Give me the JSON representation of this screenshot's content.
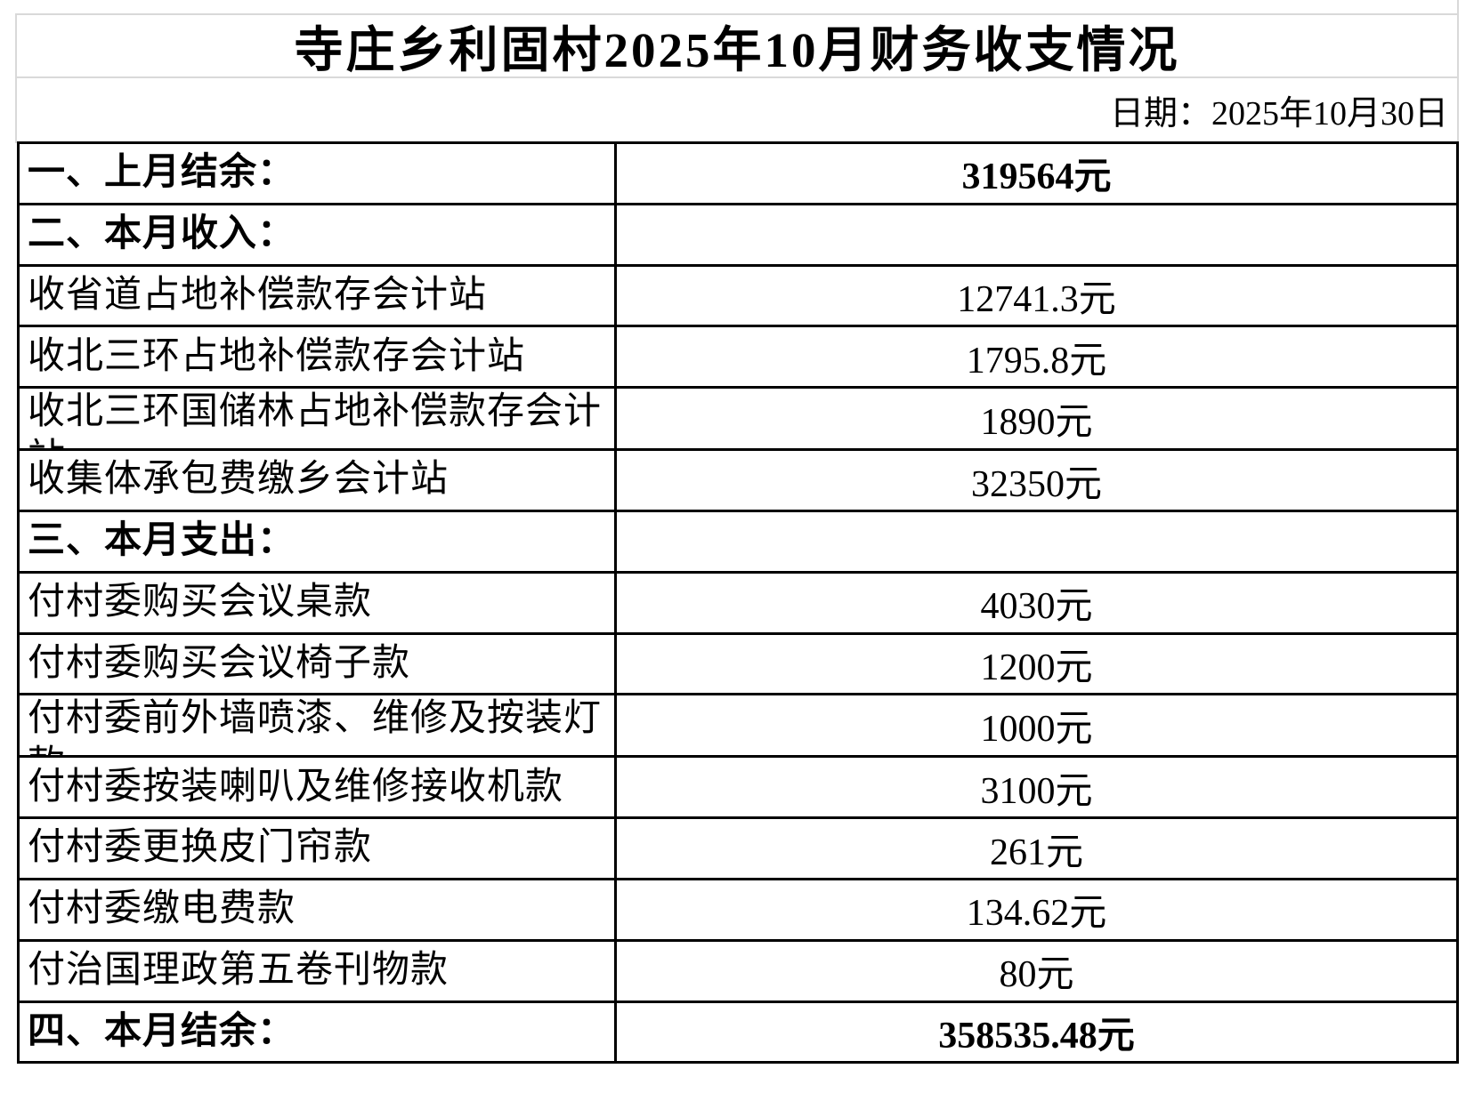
{
  "page": {
    "title": "寺庄乡利固村2025年10月财务收支情况",
    "date_label": "日期：2025年10月30日"
  },
  "table": {
    "rows": [
      {
        "label": "一、上月结余：",
        "value": "319564元",
        "bold": true,
        "wrap": false
      },
      {
        "label": "二、本月收入：",
        "value": "",
        "bold": true,
        "wrap": false
      },
      {
        "label": "收省道占地补偿款存会计站",
        "value": "12741.3元",
        "bold": false,
        "wrap": false
      },
      {
        "label": "收北三环占地补偿款存会计站",
        "value": "1795.8元",
        "bold": false,
        "wrap": false
      },
      {
        "label": "收北三环国储林占地补偿款存会计站",
        "value": "1890元",
        "bold": false,
        "wrap": true
      },
      {
        "label": "收集体承包费缴乡会计站",
        "value": "32350元",
        "bold": false,
        "wrap": false
      },
      {
        "label": "三、本月支出：",
        "value": "",
        "bold": true,
        "wrap": false
      },
      {
        "label": "付村委购买会议桌款",
        "value": "4030元",
        "bold": false,
        "wrap": false
      },
      {
        "label": "付村委购买会议椅子款",
        "value": "1200元",
        "bold": false,
        "wrap": false
      },
      {
        "label": "付村委前外墙喷漆、维修及按装灯款",
        "value": "1000元",
        "bold": false,
        "wrap": true
      },
      {
        "label": "付村委按装喇叭及维修接收机款",
        "value": "3100元",
        "bold": false,
        "wrap": false
      },
      {
        "label": "付村委更换皮门帘款",
        "value": "261元",
        "bold": false,
        "wrap": false
      },
      {
        "label": "付村委缴电费款",
        "value": "134.62元",
        "bold": false,
        "wrap": false
      },
      {
        "label": "付治国理政第五卷刊物款",
        "value": "80元",
        "bold": false,
        "wrap": false
      },
      {
        "label": "四、本月结余：",
        "value": "358535.48元",
        "bold": true,
        "wrap": false
      }
    ]
  },
  "colors": {
    "background": "#ffffff",
    "text": "#000000",
    "table_border": "#000000",
    "grid_line": "#d9d9d9"
  }
}
